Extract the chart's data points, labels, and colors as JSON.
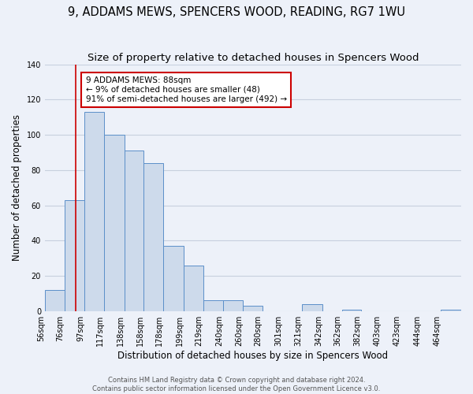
{
  "title": "9, ADDAMS MEWS, SPENCERS WOOD, READING, RG7 1WU",
  "subtitle": "Size of property relative to detached houses in Spencers Wood",
  "xlabel": "Distribution of detached houses by size in Spencers Wood",
  "ylabel": "Number of detached properties",
  "bin_labels": [
    "56sqm",
    "76sqm",
    "97sqm",
    "117sqm",
    "138sqm",
    "158sqm",
    "178sqm",
    "199sqm",
    "219sqm",
    "240sqm",
    "260sqm",
    "280sqm",
    "301sqm",
    "321sqm",
    "342sqm",
    "362sqm",
    "382sqm",
    "403sqm",
    "423sqm",
    "444sqm",
    "464sqm"
  ],
  "bar_heights": [
    12,
    63,
    113,
    100,
    91,
    84,
    37,
    26,
    6,
    6,
    3,
    0,
    0,
    4,
    0,
    1,
    0,
    0,
    0,
    0,
    1
  ],
  "bar_color": "#cddaeb",
  "bar_edge_color": "#5b8fc9",
  "vline_x": 88,
  "vline_color": "#cc0000",
  "annotation_text": "9 ADDAMS MEWS: 88sqm\n← 9% of detached houses are smaller (48)\n91% of semi-detached houses are larger (492) →",
  "annotation_box_color": "#ffffff",
  "annotation_box_edge": "#cc0000",
  "ylim": [
    0,
    140
  ],
  "yticks": [
    0,
    20,
    40,
    60,
    80,
    100,
    120,
    140
  ],
  "bin_edges": [
    56,
    76,
    97,
    117,
    138,
    158,
    178,
    199,
    219,
    240,
    260,
    280,
    301,
    321,
    342,
    362,
    382,
    403,
    423,
    444,
    464,
    485
  ],
  "footer_line1": "Contains HM Land Registry data © Crown copyright and database right 2024.",
  "footer_line2": "Contains public sector information licensed under the Open Government Licence v3.0.",
  "background_color": "#edf1f9",
  "grid_color": "#c8d0de",
  "title_fontsize": 10.5,
  "subtitle_fontsize": 9.5,
  "axis_label_fontsize": 8.5,
  "tick_fontsize": 7,
  "annotation_fontsize": 7.5,
  "footer_fontsize": 6
}
